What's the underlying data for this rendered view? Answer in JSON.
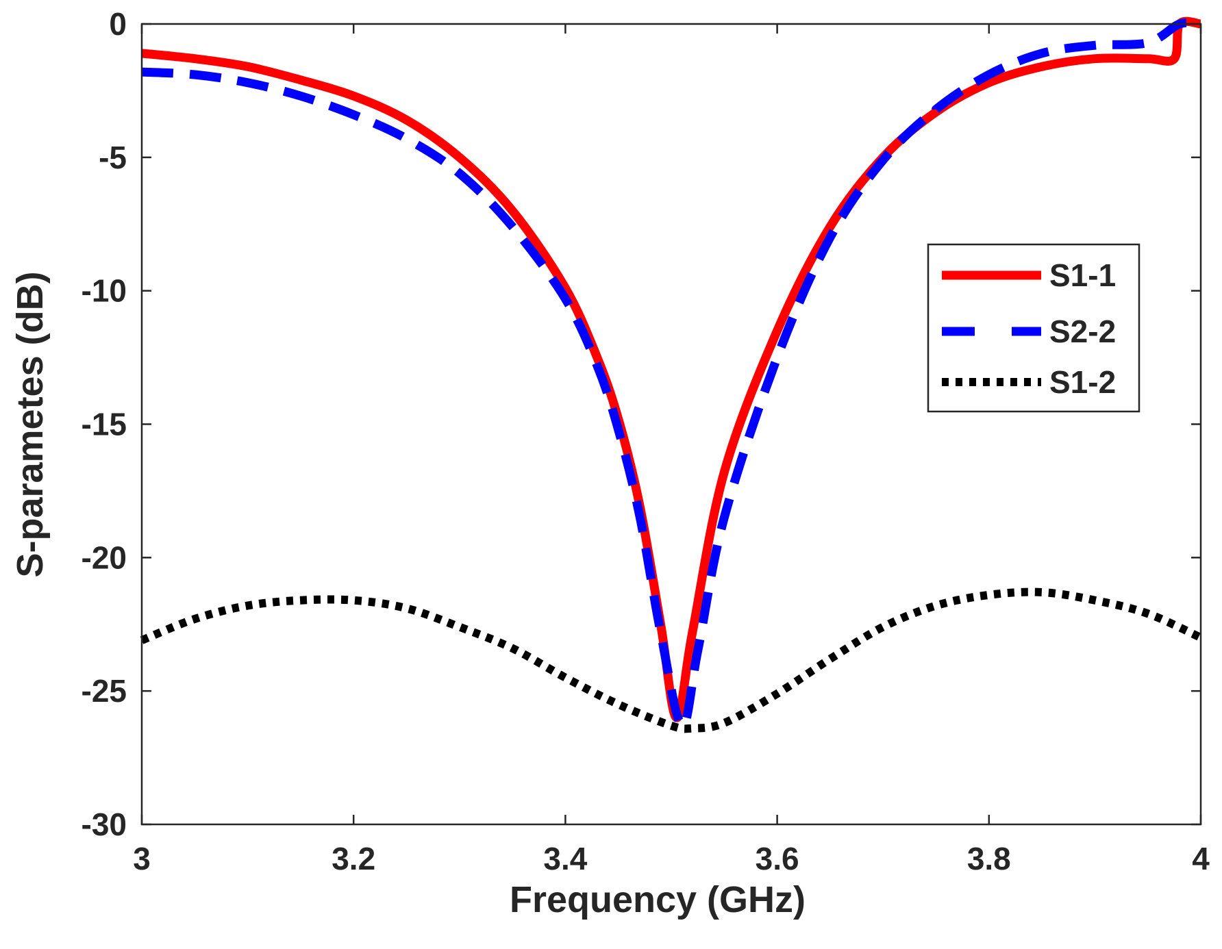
{
  "chart_data": {
    "type": "line",
    "title": "",
    "xlabel": "Frequency (GHz)",
    "ylabel": "S-parametes (dB)",
    "xlim": [
      3,
      4
    ],
    "ylim": [
      -30,
      0
    ],
    "xticks": [
      3,
      3.2,
      3.4,
      3.6,
      3.8,
      4
    ],
    "xtick_labels": [
      "3",
      "3.2",
      "3.4",
      "3.6",
      "3.8",
      "4"
    ],
    "yticks": [
      0,
      -5,
      -10,
      -15,
      -20,
      -25,
      -30
    ],
    "ytick_labels": [
      "0",
      "-5",
      "-10",
      "-15",
      "-20",
      "-25",
      "-30"
    ],
    "grid": false,
    "legend_position": "right",
    "series": [
      {
        "name": "S1-1",
        "color": "#ff0000",
        "style": "solid",
        "x": [
          3.0,
          3.05,
          3.1,
          3.15,
          3.2,
          3.25,
          3.3,
          3.35,
          3.4,
          3.43,
          3.45,
          3.47,
          3.49,
          3.505,
          3.52,
          3.55,
          3.6,
          3.65,
          3.7,
          3.75,
          3.8,
          3.85,
          3.9,
          3.95,
          3.975,
          3.98,
          4.0
        ],
        "y": [
          -1.1,
          -1.3,
          -1.6,
          -2.1,
          -2.7,
          -3.6,
          -5.0,
          -7.0,
          -9.9,
          -12.5,
          -14.8,
          -18.0,
          -22.5,
          -26.0,
          -22.8,
          -16.8,
          -11.5,
          -7.6,
          -5.0,
          -3.3,
          -2.2,
          -1.6,
          -1.3,
          -1.3,
          -1.3,
          0.0,
          0.0
        ]
      },
      {
        "name": "S2-2",
        "color": "#0000ff",
        "style": "dashed",
        "x": [
          3.0,
          3.05,
          3.1,
          3.15,
          3.2,
          3.25,
          3.3,
          3.35,
          3.4,
          3.43,
          3.45,
          3.47,
          3.49,
          3.51,
          3.525,
          3.55,
          3.6,
          3.65,
          3.7,
          3.75,
          3.8,
          3.85,
          3.9,
          3.95,
          3.98,
          4.0
        ],
        "y": [
          -1.8,
          -1.9,
          -2.2,
          -2.7,
          -3.4,
          -4.3,
          -5.6,
          -7.6,
          -10.3,
          -12.8,
          -15.2,
          -18.4,
          -22.8,
          -26.3,
          -23.5,
          -18.5,
          -12.5,
          -8.0,
          -5.1,
          -3.2,
          -1.9,
          -1.1,
          -0.8,
          -0.7,
          0.0,
          0.0
        ]
      },
      {
        "name": "S1-2",
        "color": "#000000",
        "style": "dotted",
        "x": [
          3.0,
          3.05,
          3.1,
          3.15,
          3.2,
          3.25,
          3.3,
          3.35,
          3.4,
          3.45,
          3.5,
          3.52,
          3.55,
          3.6,
          3.65,
          3.7,
          3.75,
          3.8,
          3.85,
          3.9,
          3.95,
          4.0
        ],
        "y": [
          -23.1,
          -22.3,
          -21.8,
          -21.6,
          -21.6,
          -21.9,
          -22.6,
          -23.4,
          -24.5,
          -25.5,
          -26.3,
          -26.4,
          -26.2,
          -25.1,
          -23.8,
          -22.6,
          -21.8,
          -21.4,
          -21.3,
          -21.6,
          -22.1,
          -23.0
        ]
      }
    ]
  }
}
